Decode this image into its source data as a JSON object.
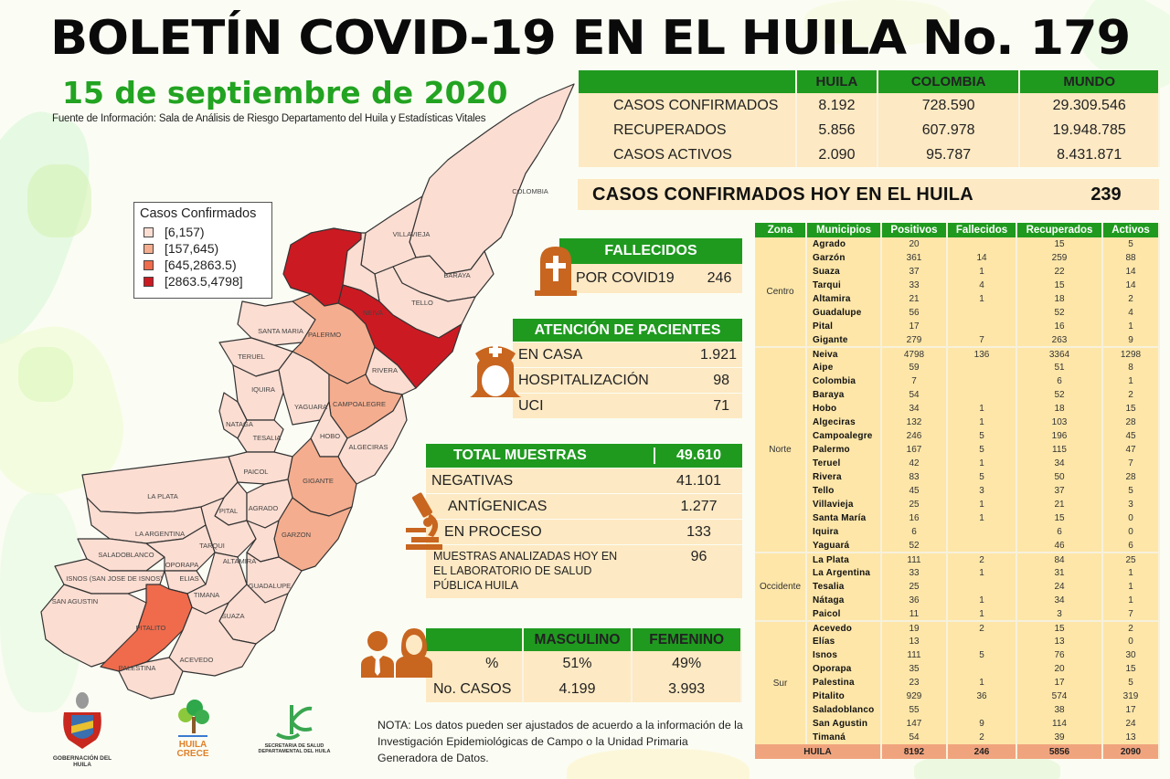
{
  "header": {
    "title": "BOLETÍN COVID-19 EN EL HUILA No. 179",
    "date": "15 de septiembre de 2020",
    "source": "Fuente de Información: Sala de Análisis de Riesgo Departamento del Huila y Estadísticas Vitales"
  },
  "colors": {
    "green": "#1f9a1f",
    "cream": "#fde9c3",
    "table_cream": "#fde6a8",
    "total_row": "#f0a47e",
    "icon_orange": "#c8651f",
    "map_low": "#fbddd2",
    "map_mid": "#f4ad8e",
    "map_high": "#ef6b4c",
    "map_top": "#cc1a22"
  },
  "legend": {
    "title": "Casos Confirmados",
    "items": [
      {
        "label": "[6,157)",
        "color": "#fbddd2"
      },
      {
        "label": "[157,645)",
        "color": "#f4ad8e"
      },
      {
        "label": "[645,2863.5)",
        "color": "#ef6b4c"
      },
      {
        "label": "[2863.5,4798]",
        "color": "#cc1a22"
      }
    ]
  },
  "map": {
    "labels": [
      "COLOMBIA",
      "VILLAVIEJA",
      "BARAYA",
      "TELLO",
      "NEIVA",
      "SANTA MARIA",
      "PALERMO",
      "TERUEL",
      "RIVERA",
      "IQUIRA",
      "YAGUARA",
      "CAMPOALEGRE",
      "NATAGA",
      "TESALIA",
      "HOBO",
      "ALGECIRAS",
      "PAICOL",
      "GIGANTE",
      "LA PLATA",
      "PITAL",
      "AGRADO",
      "LA ARGENTINA",
      "TARQUI",
      "GARZON",
      "SALADOBLANCO",
      "OPORAPA",
      "ALTAMIRA",
      "ISNOS (SAN JOSE DE ISNOS)",
      "ELIAS",
      "GUADALUPE",
      "TIMANA",
      "SAN AGUSTIN",
      "SUAZA",
      "PITALITO",
      "ACEVEDO",
      "PALESTINA"
    ]
  },
  "summary": {
    "columns": [
      "",
      "HUILA",
      "COLOMBIA",
      "MUNDO"
    ],
    "rows": [
      {
        "label": "CASOS CONFIRMADOS",
        "huila": "8.192",
        "colombia": "728.590",
        "mundo": "29.309.546"
      },
      {
        "label": "RECUPERADOS",
        "huila": "5.856",
        "colombia": "607.978",
        "mundo": "19.948.785"
      },
      {
        "label": "CASOS ACTIVOS",
        "huila": "2.090",
        "colombia": "95.787",
        "mundo": "8.431.871"
      }
    ]
  },
  "today": {
    "label": "CASOS CONFIRMADOS HOY EN EL HUILA",
    "value": "239"
  },
  "fallecidos": {
    "title": "FALLECIDOS",
    "label": "POR COVID19",
    "value": "246"
  },
  "atencion": {
    "title": "ATENCIÓN DE PACIENTES",
    "rows": [
      {
        "label": "EN CASA",
        "value": "1.921"
      },
      {
        "label": "HOSPITALIZACIÓN",
        "value": "98"
      },
      {
        "label": "UCI",
        "value": "71"
      }
    ]
  },
  "muestras": {
    "title": "TOTAL MUESTRAS",
    "total": "49.610",
    "rows": [
      {
        "label": "NEGATIVAS",
        "value": "41.101"
      },
      {
        "label": "ANTÍGENICAS",
        "value": "1.277"
      },
      {
        "label": "EN PROCESO",
        "value": "133"
      },
      {
        "label": "MUESTRAS ANALIZADAS HOY EN EL LABORATORIO DE SALUD PÚBLICA HUILA",
        "value": "96"
      }
    ]
  },
  "genero": {
    "columns": [
      "",
      "MASCULINO",
      "FEMENINO"
    ],
    "rows": [
      {
        "label": "%",
        "masculino": "51%",
        "femenino": "49%"
      },
      {
        "label": "No. CASOS",
        "masculino": "4.199",
        "femenino": "3.993"
      }
    ]
  },
  "nota": "NOTA: Los datos pueden ser ajustados de acuerdo a la información de la Investigación Epidemiológicas de Campo o la Unidad Primaria Generadora de Datos.",
  "logos": {
    "gobernacion": "GOBERNACIÓN DEL HUILA",
    "huila_crece": "HUILA CRECE",
    "secretaria": "SECRETARIA DE SALUD DEPARTAMENTAL DEL HUILA"
  },
  "municipios": {
    "columns": [
      "Zona",
      "Municipios",
      "Positivos",
      "Fallecidos",
      "Recuperados",
      "Activos"
    ],
    "zones": [
      {
        "zona": "Centro",
        "rows": [
          [
            "Agrado",
            "20",
            "",
            "15",
            "5"
          ],
          [
            "Garzón",
            "361",
            "14",
            "259",
            "88"
          ],
          [
            "Suaza",
            "37",
            "1",
            "22",
            "14"
          ],
          [
            "Tarqui",
            "33",
            "4",
            "15",
            "14"
          ],
          [
            "Altamira",
            "21",
            "1",
            "18",
            "2"
          ],
          [
            "Guadalupe",
            "56",
            "",
            "52",
            "4"
          ],
          [
            "Pital",
            "17",
            "",
            "16",
            "1"
          ],
          [
            "Gigante",
            "279",
            "7",
            "263",
            "9"
          ]
        ]
      },
      {
        "zona": "Norte",
        "rows": [
          [
            "Neiva",
            "4798",
            "136",
            "3364",
            "1298"
          ],
          [
            "Aipe",
            "59",
            "",
            "51",
            "8"
          ],
          [
            "Colombia",
            "7",
            "",
            "6",
            "1"
          ],
          [
            "Baraya",
            "54",
            "",
            "52",
            "2"
          ],
          [
            "Hobo",
            "34",
            "1",
            "18",
            "15"
          ],
          [
            "Algeciras",
            "132",
            "1",
            "103",
            "28"
          ],
          [
            "Campoalegre",
            "246",
            "5",
            "196",
            "45"
          ],
          [
            "Palermo",
            "167",
            "5",
            "115",
            "47"
          ],
          [
            "Teruel",
            "42",
            "1",
            "34",
            "7"
          ],
          [
            "Rivera",
            "83",
            "5",
            "50",
            "28"
          ],
          [
            "Tello",
            "45",
            "3",
            "37",
            "5"
          ],
          [
            "Villavieja",
            "25",
            "1",
            "21",
            "3"
          ],
          [
            "Santa María",
            "16",
            "1",
            "15",
            "0"
          ],
          [
            "Iquira",
            "6",
            "",
            "6",
            "0"
          ],
          [
            "Yaguará",
            "52",
            "",
            "46",
            "6"
          ]
        ]
      },
      {
        "zona": "Occidente",
        "rows": [
          [
            "La Plata",
            "111",
            "2",
            "84",
            "25"
          ],
          [
            "La Argentina",
            "33",
            "1",
            "31",
            "1"
          ],
          [
            "Tesalia",
            "25",
            "",
            "24",
            "1"
          ],
          [
            "Nátaga",
            "36",
            "1",
            "34",
            "1"
          ],
          [
            "Paicol",
            "11",
            "1",
            "3",
            "7"
          ]
        ]
      },
      {
        "zona": "Sur",
        "rows": [
          [
            "Acevedo",
            "19",
            "2",
            "15",
            "2"
          ],
          [
            "Elías",
            "13",
            "",
            "13",
            "0"
          ],
          [
            "Isnos",
            "111",
            "5",
            "76",
            "30"
          ],
          [
            "Oporapa",
            "35",
            "",
            "20",
            "15"
          ],
          [
            "Palestina",
            "23",
            "1",
            "17",
            "5"
          ],
          [
            "Pitalito",
            "929",
            "36",
            "574",
            "319"
          ],
          [
            "Saladoblanco",
            "55",
            "",
            "38",
            "17"
          ],
          [
            "San Agustin",
            "147",
            "9",
            "114",
            "24"
          ],
          [
            "Timaná",
            "54",
            "2",
            "39",
            "13"
          ]
        ]
      }
    ],
    "total": {
      "label": "HUILA",
      "positivos": "8192",
      "fallecidos": "246",
      "recuperados": "5856",
      "activos": "2090"
    }
  }
}
